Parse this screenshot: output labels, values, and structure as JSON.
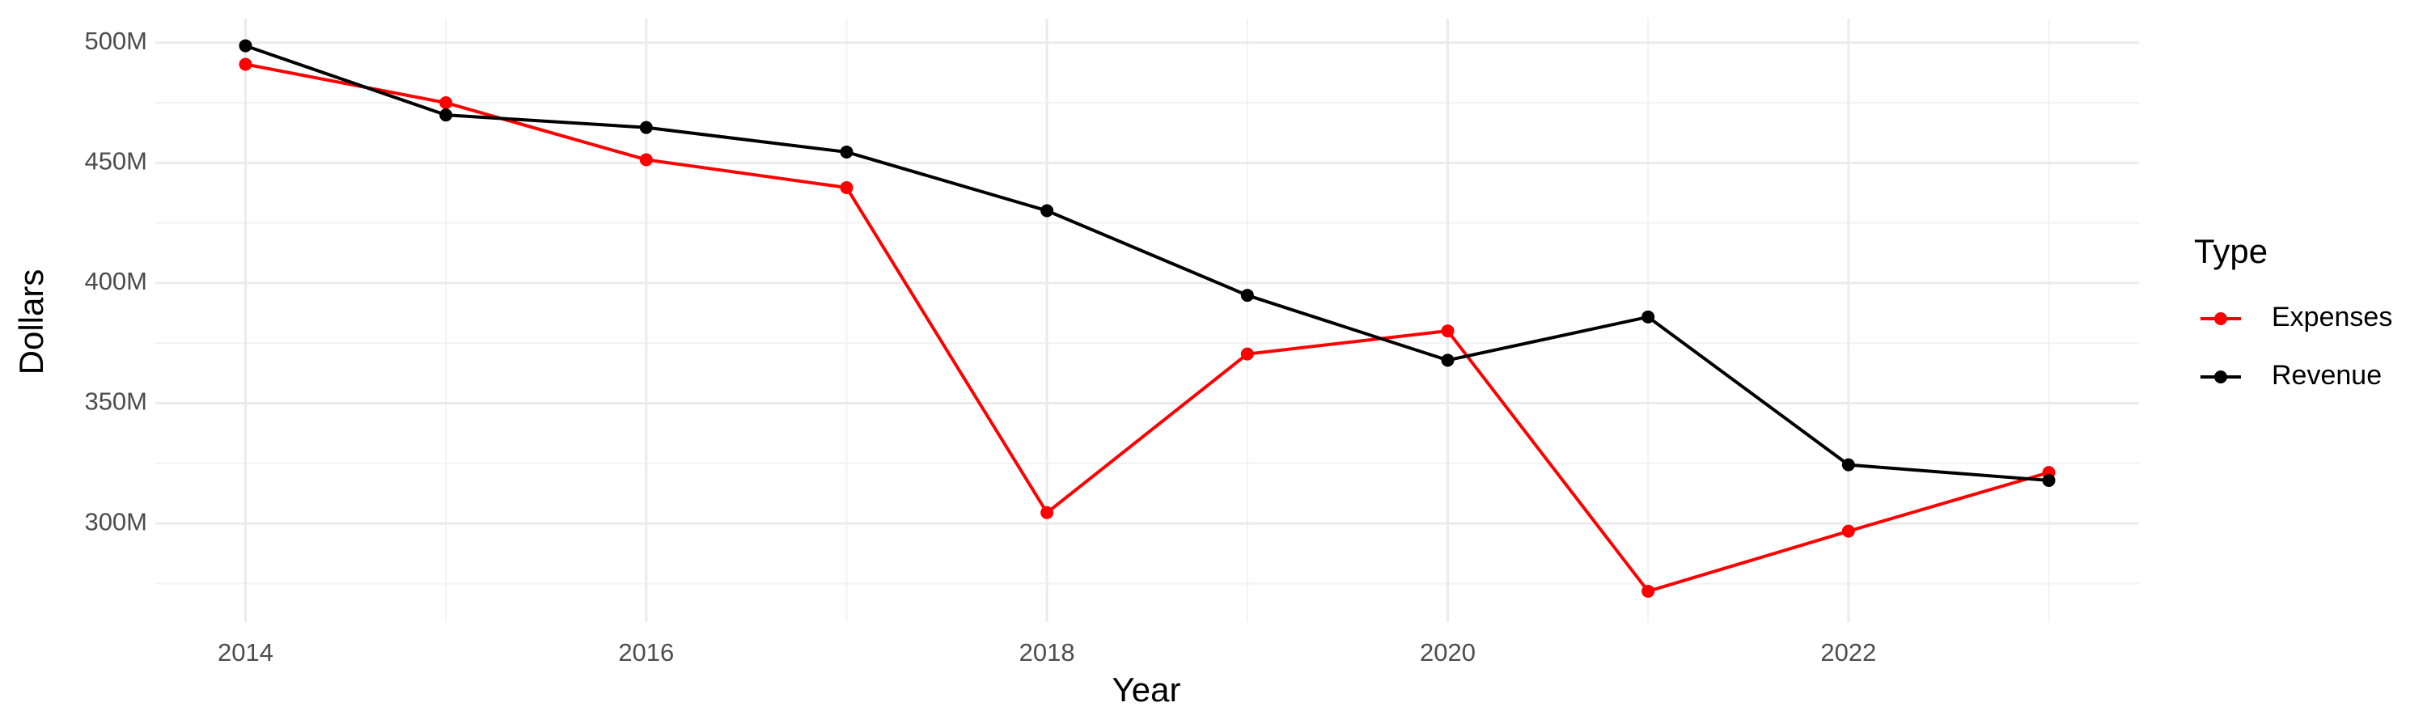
{
  "chart_data": {
    "type": "line",
    "x_label": "Year",
    "y_label": "Dollars",
    "x": [
      2014,
      2015,
      2016,
      2017,
      2018,
      2019,
      2020,
      2021,
      2022,
      2023
    ],
    "series": [
      {
        "name": "Expenses",
        "color": "#ff0000",
        "values": [
          491000000,
          475000000,
          451300000,
          439700000,
          304500000,
          370500000,
          380100000,
          271800000,
          296800000,
          321200000
        ]
      },
      {
        "name": "Revenue",
        "color": "#000000",
        "values": [
          498700000,
          469900000,
          464700000,
          454500000,
          430100000,
          394900000,
          367900000,
          385900000,
          324400000,
          317900000
        ]
      }
    ],
    "xlim": [
      2013.55,
      2023.45
    ],
    "xticks": [
      2014,
      2016,
      2018,
      2020,
      2022
    ],
    "ylim": [
      259000000,
      510000000
    ],
    "yticks": [
      {
        "value": 300000000,
        "label": "300M"
      },
      {
        "value": 350000000,
        "label": "350M"
      },
      {
        "value": 400000000,
        "label": "400M"
      },
      {
        "value": 450000000,
        "label": "450M"
      },
      {
        "value": 500000000,
        "label": "500M"
      }
    ],
    "grid": true,
    "legend_title": "Type",
    "legend_position": "right"
  }
}
